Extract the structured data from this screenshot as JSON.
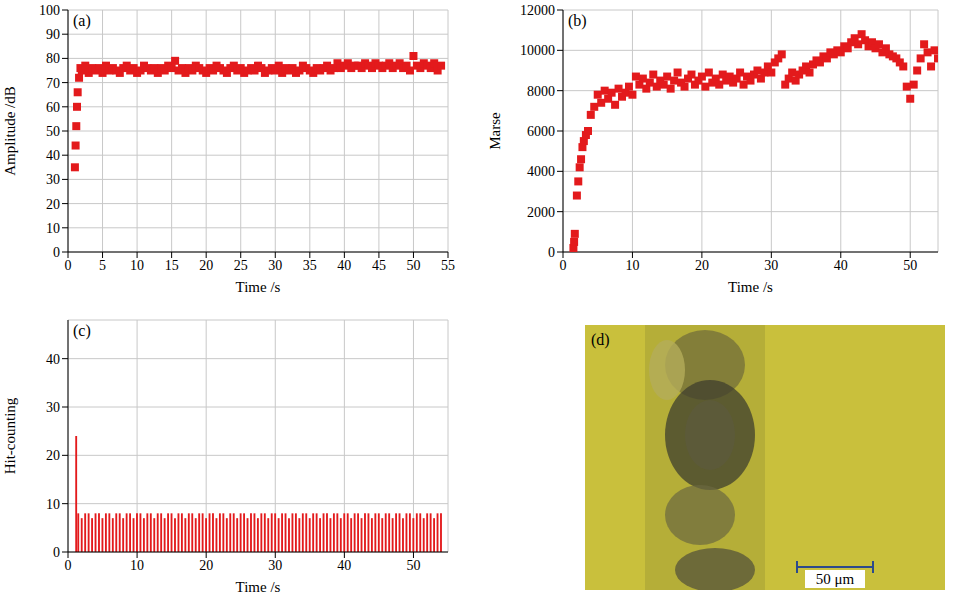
{
  "chart_data": [
    {
      "type": "scatter",
      "title": "(a)",
      "xlabel": "Time /s",
      "ylabel": "Amplitude /dB",
      "color": "#e31a1c",
      "marker": "square",
      "grid": true,
      "xlim": [
        0,
        55
      ],
      "xticks": [
        0,
        5,
        10,
        15,
        20,
        25,
        30,
        35,
        40,
        45,
        50,
        55
      ],
      "ylim": [
        0,
        100
      ],
      "yticks": [
        0,
        10,
        20,
        30,
        40,
        50,
        60,
        70,
        80,
        90,
        100
      ],
      "x": [
        1,
        1.1,
        1.2,
        1.3,
        1.4,
        1.6,
        1.8,
        2,
        2.5,
        3,
        3.5,
        4,
        4.5,
        5,
        5.5,
        6,
        6.5,
        7,
        7.5,
        8,
        8.5,
        9,
        9.5,
        10,
        10.5,
        11,
        11.5,
        12,
        12.5,
        13,
        13.5,
        14,
        14.5,
        15,
        15.5,
        16,
        16.5,
        17,
        17.5,
        18,
        18.5,
        19,
        19.5,
        20,
        20.5,
        21,
        21.5,
        22,
        22.5,
        23,
        23.5,
        24,
        24.5,
        25,
        25.5,
        26,
        26.5,
        27,
        27.5,
        28,
        28.5,
        29,
        29.5,
        30,
        30.5,
        31,
        31.5,
        32,
        32.5,
        33,
        33.5,
        34,
        34.5,
        35,
        35.5,
        36,
        36.5,
        37,
        37.5,
        38,
        38.5,
        39,
        39.5,
        40,
        40.5,
        41,
        41.5,
        42,
        42.5,
        43,
        43.5,
        44,
        44.5,
        45,
        45.5,
        46,
        46.5,
        47,
        47.5,
        48,
        48.5,
        49,
        49.5,
        50,
        50.5,
        51,
        51.5,
        52,
        52.5,
        53,
        53.5,
        54
      ],
      "values": [
        35,
        44,
        52,
        60,
        66,
        72,
        76,
        75,
        77,
        74,
        76,
        75,
        76,
        74,
        77,
        75,
        76,
        75,
        74,
        76,
        77,
        75,
        76,
        74,
        75,
        77,
        76,
        75,
        76,
        74,
        76,
        75,
        77,
        76,
        79,
        75,
        76,
        74,
        76,
        75,
        77,
        76,
        75,
        74,
        76,
        75,
        77,
        76,
        75,
        74,
        76,
        77,
        75,
        76,
        74,
        75,
        76,
        75,
        77,
        76,
        74,
        75,
        76,
        75,
        77,
        74,
        76,
        75,
        76,
        74,
        75,
        77,
        76,
        75,
        74,
        76,
        75,
        76,
        77,
        75,
        76,
        78,
        76,
        77,
        78,
        76,
        77,
        77,
        76,
        78,
        77,
        76,
        78,
        77,
        76,
        77,
        78,
        76,
        77,
        78,
        76,
        77,
        75,
        81,
        77,
        76,
        78,
        77,
        76,
        78,
        75,
        77
      ]
    },
    {
      "type": "scatter",
      "title": "(b)",
      "xlabel": "Time /s",
      "ylabel": "Marse",
      "color": "#e31a1c",
      "marker": "square",
      "grid": true,
      "xlim": [
        0,
        54
      ],
      "xticks": [
        0,
        10,
        20,
        30,
        40,
        50
      ],
      "ylim": [
        0,
        12000
      ],
      "yticks": [
        0,
        2000,
        4000,
        6000,
        8000,
        10000,
        12000
      ],
      "x": [
        1.5,
        1.6,
        1.7,
        2,
        2.2,
        2.4,
        2.6,
        2.8,
        3,
        3.3,
        3.6,
        4,
        4.5,
        5,
        5.5,
        6,
        6.5,
        7,
        7.5,
        8,
        8.5,
        9,
        9.5,
        10,
        10.5,
        11,
        11.5,
        12,
        12.5,
        13,
        13.5,
        14,
        14.5,
        15,
        15.5,
        16,
        16.5,
        17,
        17.5,
        18,
        18.5,
        19,
        19.5,
        20,
        20.5,
        21,
        21.5,
        22,
        22.5,
        23,
        23.5,
        24,
        24.5,
        25,
        25.5,
        26,
        26.5,
        27,
        27.5,
        28,
        28.5,
        29,
        29.5,
        30,
        30.5,
        31,
        31.5,
        32,
        32.5,
        33,
        33.5,
        34,
        34.5,
        35,
        35.5,
        36,
        36.5,
        37,
        37.5,
        38,
        38.5,
        39,
        39.5,
        40,
        40.5,
        41,
        41.5,
        42,
        42.5,
        43,
        43.5,
        44,
        44.5,
        45,
        45.5,
        46,
        46.5,
        47,
        47.5,
        48,
        48.5,
        49,
        49.5,
        50,
        50.5,
        51,
        51.5,
        52,
        52.5,
        53,
        53.5,
        54
      ],
      "values": [
        200,
        500,
        900,
        2800,
        3500,
        4200,
        4600,
        5200,
        5500,
        5800,
        6000,
        6800,
        7200,
        7800,
        7400,
        8000,
        7600,
        7900,
        7300,
        8100,
        7700,
        7900,
        8200,
        7800,
        8700,
        8300,
        8600,
        8100,
        8400,
        8800,
        8200,
        8500,
        8300,
        8700,
        8100,
        8500,
        8900,
        8400,
        8200,
        8600,
        8800,
        8300,
        8500,
        8700,
        8200,
        8900,
        8400,
        8600,
        8300,
        8800,
        8500,
        8700,
        8400,
        8600,
        8900,
        8300,
        8700,
        8500,
        8800,
        9000,
        8600,
        8900,
        9200,
        8900,
        9400,
        9600,
        9800,
        8300,
        8600,
        8900,
        8500,
        8800,
        9000,
        9200,
        8900,
        9300,
        9500,
        9400,
        9700,
        9600,
        9900,
        9800,
        10000,
        9900,
        10200,
        10100,
        10400,
        10600,
        10300,
        10800,
        10500,
        10200,
        10400,
        10100,
        10300,
        9900,
        10100,
        9800,
        9700,
        9600,
        9400,
        9200,
        8200,
        7600,
        8300,
        9000,
        9600,
        10300,
        9900,
        9200,
        10000,
        9600
      ]
    },
    {
      "type": "bar",
      "title": "(c)",
      "xlabel": "Time /s",
      "ylabel": "Hit-counting",
      "color": "#e31a1c",
      "grid": true,
      "xlim": [
        0,
        55
      ],
      "xticks": [
        0,
        10,
        20,
        30,
        40,
        50
      ],
      "ylim": [
        0,
        48
      ],
      "yticks": [
        0,
        10,
        20,
        30,
        40
      ],
      "x": [
        1.2,
        1.5,
        2,
        2.5,
        3,
        3.5,
        4,
        4.5,
        5,
        5.5,
        6,
        6.5,
        7,
        7.5,
        8,
        8.5,
        9,
        9.5,
        10,
        10.5,
        11,
        11.5,
        12,
        12.5,
        13,
        13.5,
        14,
        14.5,
        15,
        15.5,
        16,
        16.5,
        17,
        17.5,
        18,
        18.5,
        19,
        19.5,
        20,
        20.5,
        21,
        21.5,
        22,
        22.5,
        23,
        23.5,
        24,
        24.5,
        25,
        25.5,
        26,
        26.5,
        27,
        27.5,
        28,
        28.5,
        29,
        29.5,
        30,
        30.5,
        31,
        31.5,
        32,
        32.5,
        33,
        33.5,
        34,
        34.5,
        35,
        35.5,
        36,
        36.5,
        37,
        37.5,
        38,
        38.5,
        39,
        39.5,
        40,
        40.5,
        41,
        41.5,
        42,
        42.5,
        43,
        43.5,
        44,
        44.5,
        45,
        45.5,
        46,
        46.5,
        47,
        47.5,
        48,
        48.5,
        49,
        49.5,
        50,
        50.5,
        51,
        51.5,
        52,
        52.5,
        53,
        53.5,
        54
      ],
      "values": [
        24,
        8,
        7,
        8,
        8,
        7,
        8,
        8,
        7,
        8,
        8,
        7,
        8,
        8,
        7,
        8,
        8,
        7,
        8,
        8,
        7,
        8,
        8,
        7,
        8,
        8,
        7,
        8,
        8,
        7,
        8,
        8,
        7,
        8,
        8,
        7,
        8,
        8,
        7,
        8,
        8,
        7,
        8,
        8,
        7,
        8,
        8,
        7,
        8,
        8,
        7,
        8,
        8,
        7,
        8,
        8,
        7,
        8,
        8,
        7,
        8,
        8,
        7,
        8,
        8,
        7,
        8,
        8,
        7,
        8,
        8,
        7,
        8,
        8,
        7,
        8,
        8,
        7,
        8,
        8,
        7,
        8,
        8,
        7,
        8,
        8,
        7,
        8,
        8,
        7,
        8,
        8,
        7,
        8,
        8,
        7,
        8,
        8,
        7,
        8,
        8,
        7,
        8,
        8,
        7,
        8,
        8
      ]
    },
    {
      "type": "image",
      "title": "(d)",
      "annotations": [
        "50 μm"
      ]
    }
  ]
}
